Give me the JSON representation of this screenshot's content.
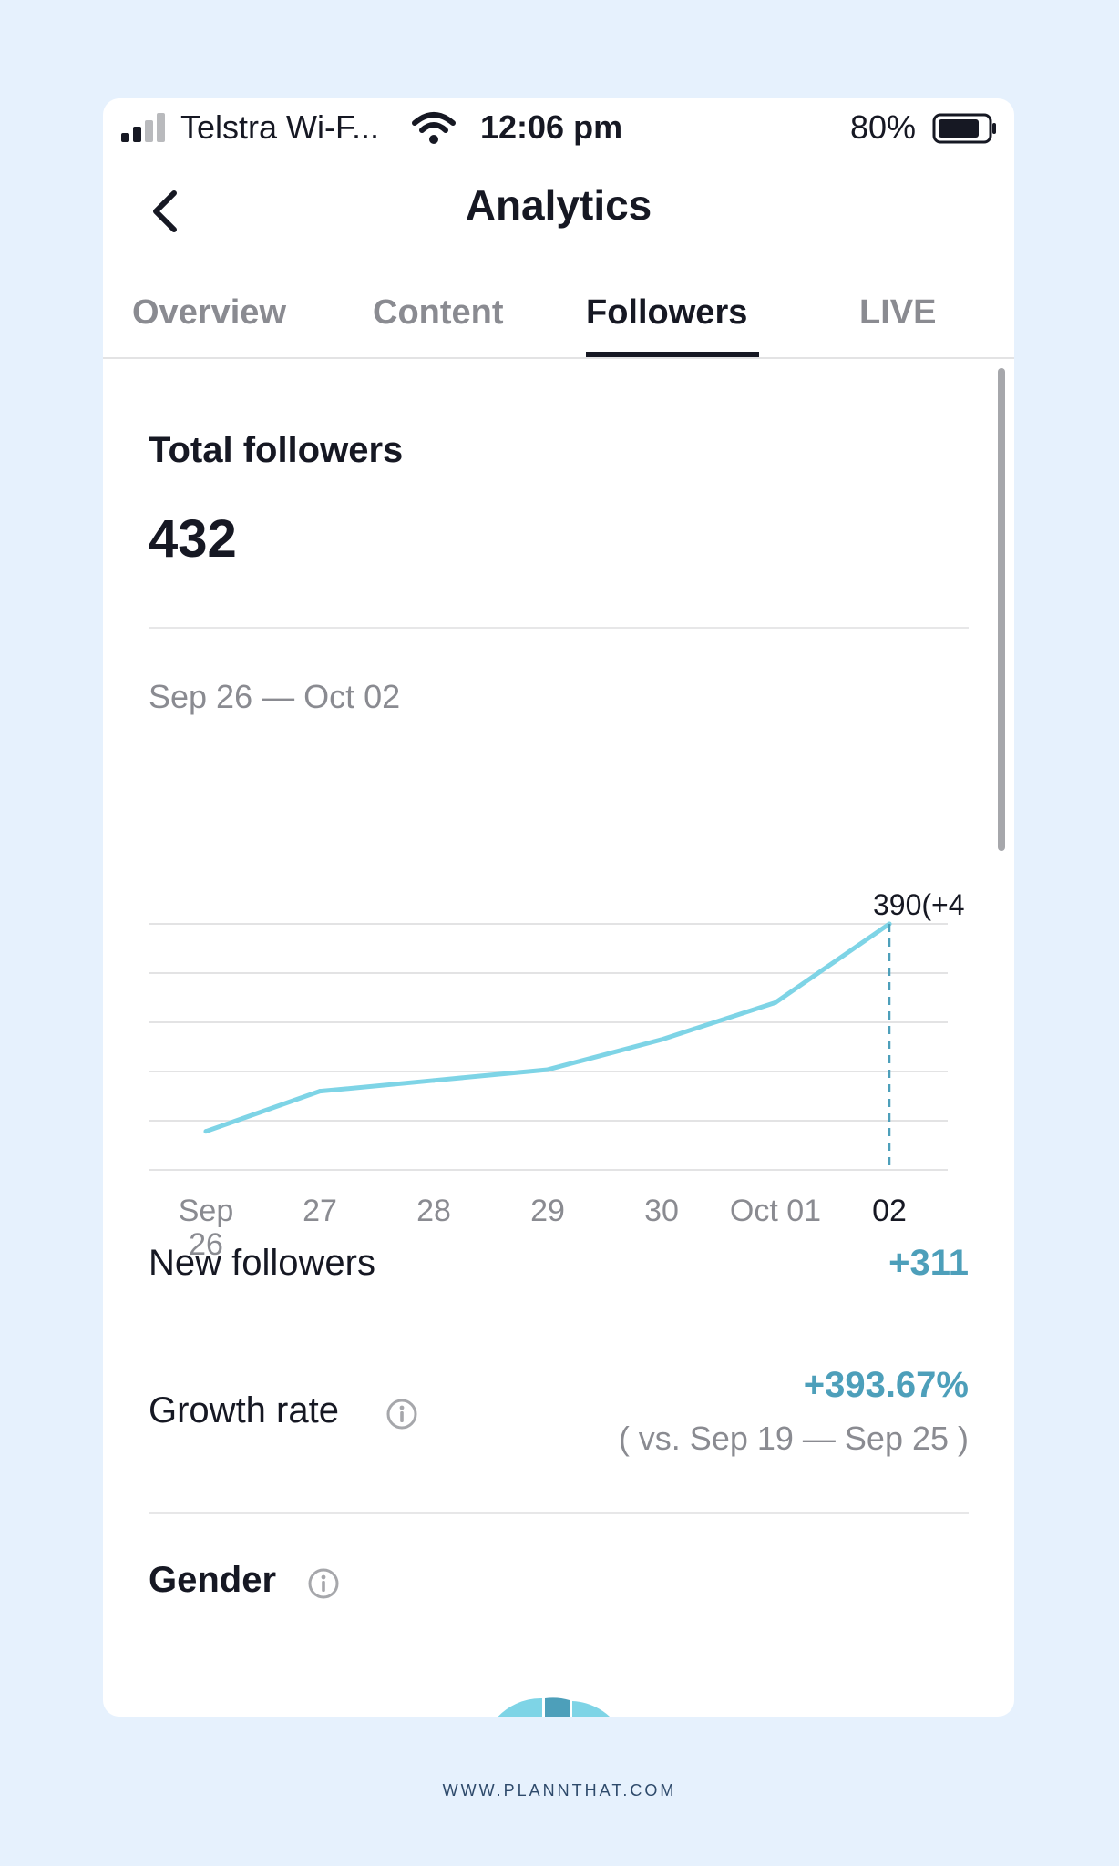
{
  "status_bar": {
    "carrier": "Telstra Wi-F...",
    "time": "12:06 pm",
    "battery": "80%",
    "battery_level": 0.8
  },
  "header": {
    "title": "Analytics",
    "back_icon": "chevron-left-icon"
  },
  "tabs": [
    {
      "label": "Overview",
      "active": false
    },
    {
      "label": "Content",
      "active": false
    },
    {
      "label": "Followers",
      "active": true
    },
    {
      "label": "LIVE",
      "active": false
    }
  ],
  "total_followers": {
    "title": "Total followers",
    "value": "432",
    "date_range": "Sep 26 — Oct 02"
  },
  "chart_data": {
    "type": "line",
    "x": [
      "Sep 26",
      "27",
      "28",
      "29",
      "30",
      "Oct 01",
      "02"
    ],
    "x_tick_labels": [
      [
        "Sep",
        "26"
      ],
      [
        "27"
      ],
      [
        "28"
      ],
      [
        "29"
      ],
      [
        "30"
      ],
      [
        "Oct 01"
      ],
      [
        "02"
      ]
    ],
    "values": [
      121,
      173,
      187,
      201,
      240,
      288,
      390
    ],
    "ylim": [
      71,
      390
    ],
    "gridlines": 6,
    "highlight_index": 6,
    "highlight_label": "390(+4",
    "line_color": "#7ed4e6",
    "grid": true
  },
  "stats": {
    "new_followers": {
      "label": "New followers",
      "value": "+311"
    },
    "growth_rate": {
      "label": "Growth rate",
      "value": "+393.67%",
      "comparison": "( vs. Sep 19 — Sep 25 )"
    }
  },
  "gender": {
    "title": "Gender"
  },
  "colors": {
    "accent": "#4d9fba",
    "line": "#7ed4e6",
    "background": "#e6f1fd"
  },
  "footer": "WWW.PLANNTHAT.COM"
}
